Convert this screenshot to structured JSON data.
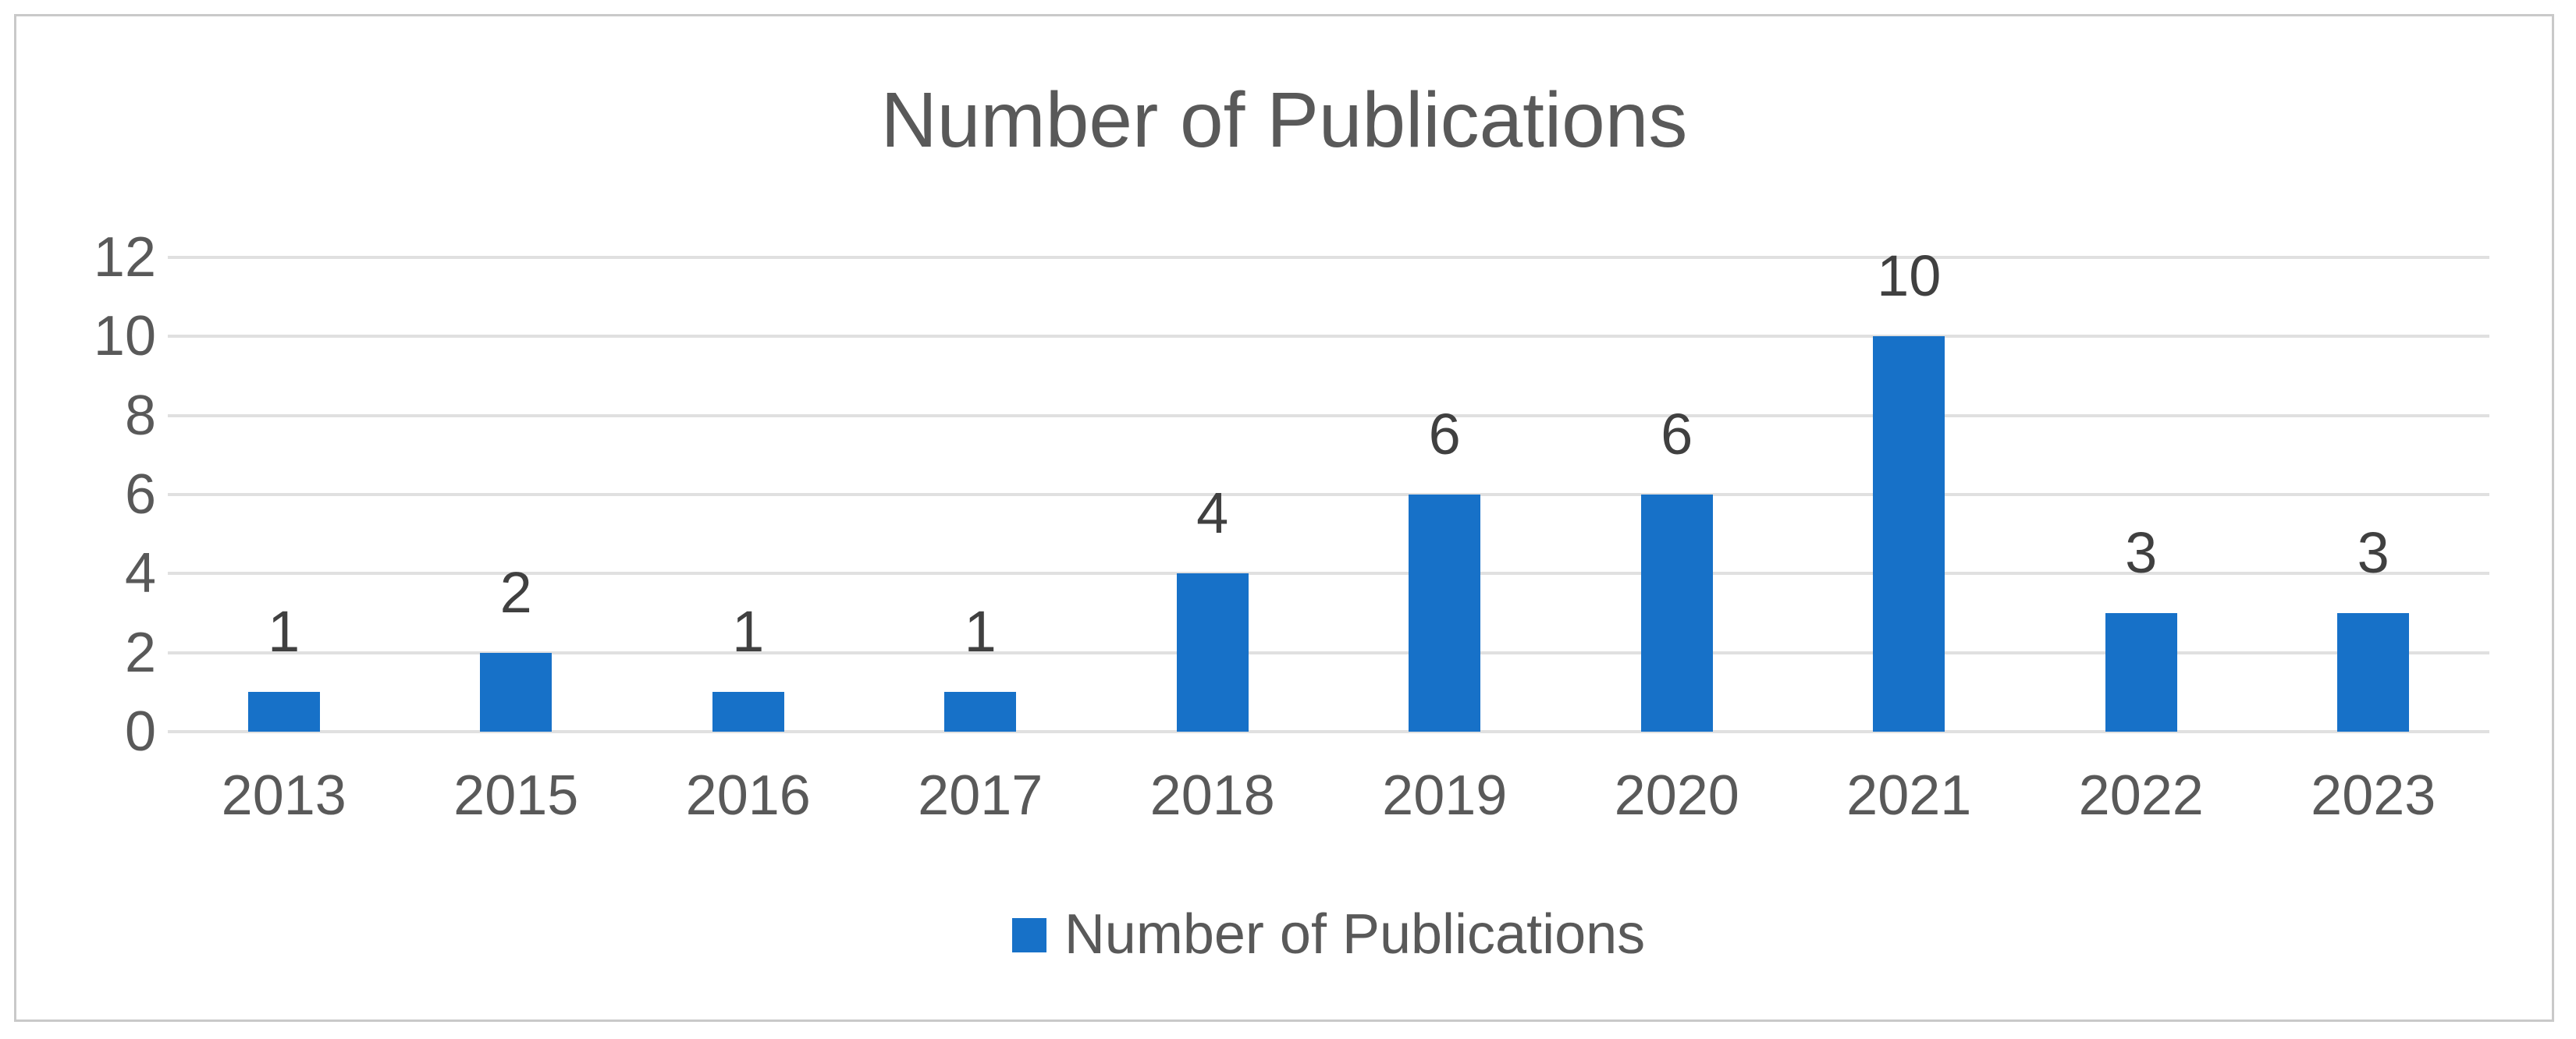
{
  "chart_data": {
    "type": "bar",
    "title": "Number of Publications",
    "categories": [
      "2013",
      "2015",
      "2016",
      "2017",
      "2018",
      "2019",
      "2020",
      "2021",
      "2022",
      "2023"
    ],
    "values": [
      1,
      2,
      1,
      1,
      4,
      6,
      6,
      10,
      3,
      3
    ],
    "series_name": "Number of Publications",
    "xlabel": "",
    "ylabel": "",
    "ylim": [
      0,
      12
    ],
    "y_ticks": [
      0,
      2,
      4,
      6,
      8,
      10,
      12
    ],
    "grid": "horizontal",
    "data_labels_shown": true,
    "legend_position": "bottom",
    "legend_marker": "blue-square",
    "colors": {
      "bar": "#1771c8",
      "gridline": "#e0e0e0",
      "axis_text": "#595959",
      "data_label_text": "#404040",
      "title_text": "#595959",
      "frame_border": "#c9c9c9",
      "background": "#ffffff"
    }
  }
}
